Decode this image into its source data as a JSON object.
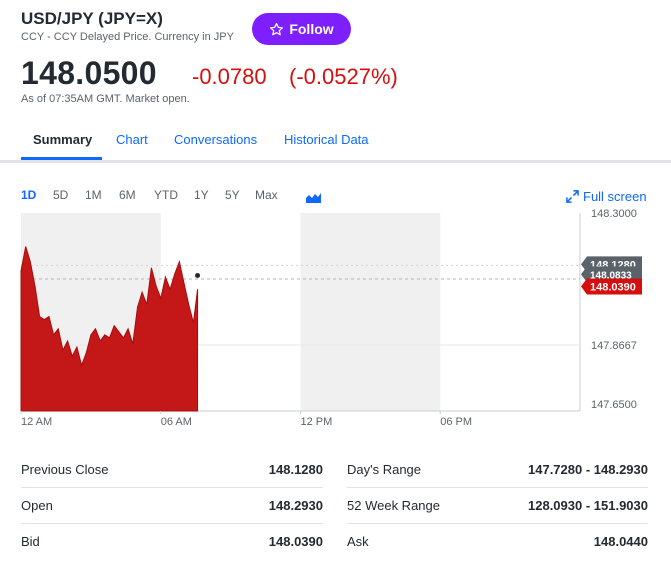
{
  "header": {
    "title": "USD/JPY (JPY=X)",
    "subtitle": "CCY - CCY Delayed Price. Currency in JPY",
    "follow_label": "Follow"
  },
  "quote": {
    "price": "148.0500",
    "change": "-0.0780",
    "change_pct": "(-0.0527%)",
    "as_of": "As of 07:35AM GMT. Market open."
  },
  "tabs": [
    {
      "label": "Summary"
    },
    {
      "label": "Chart"
    },
    {
      "label": "Conversations"
    },
    {
      "label": "Historical Data"
    }
  ],
  "ranges": [
    {
      "label": "1D"
    },
    {
      "label": "5D"
    },
    {
      "label": "1M"
    },
    {
      "label": "6M"
    },
    {
      "label": "YTD"
    },
    {
      "label": "1Y"
    },
    {
      "label": "5Y"
    },
    {
      "label": "Max"
    }
  ],
  "fullscreen_label": "Full screen",
  "colors": {
    "accent": "#0f69ff",
    "negative": "#d50e0e",
    "follow": "#7e1fff"
  },
  "chart_data": {
    "type": "area",
    "x_tick_labels": [
      "12 AM",
      "06 AM",
      "12 PM",
      "06 PM"
    ],
    "y_tick_labels": [
      "148.3000",
      "147.8667",
      "147.6500"
    ],
    "ylim": [
      147.65,
      148.3
    ],
    "xlim_hours": [
      0,
      24
    ],
    "reference_lines": [
      148.0833
    ],
    "price_flags": [
      {
        "label": "148.1280",
        "value": 148.128,
        "color": "#5b636a"
      },
      {
        "label": "148.0833",
        "value": 148.0833,
        "color": "#5b636a"
      },
      {
        "label": "148.0390",
        "value": 148.039,
        "color": "#d50e0e"
      }
    ],
    "series": [
      {
        "x": [
          0,
          0.2,
          0.4,
          0.6,
          0.8,
          1.0,
          1.2,
          1.4,
          1.6,
          1.8,
          2.0,
          2.2,
          2.4,
          2.6,
          2.8,
          3.0,
          3.2,
          3.4,
          3.6,
          3.8,
          4.0,
          4.2,
          4.4,
          4.6,
          4.8,
          5.0,
          5.2,
          5.4,
          5.6,
          5.8,
          6.0,
          6.2,
          6.4,
          6.6,
          6.8,
          7.0,
          7.2,
          7.4,
          7.58
        ],
        "values": [
          148.11,
          148.19,
          148.14,
          148.06,
          147.96,
          147.95,
          147.96,
          147.9,
          147.92,
          147.85,
          147.88,
          147.83,
          147.86,
          147.8,
          147.84,
          147.9,
          147.92,
          147.88,
          147.9,
          147.89,
          147.93,
          147.91,
          147.89,
          147.92,
          147.87,
          147.99,
          148.04,
          148.0,
          148.12,
          148.06,
          148.02,
          148.09,
          148.05,
          148.1,
          148.14,
          148.07,
          148.0,
          147.94,
          148.05
        ]
      }
    ],
    "last_value": 148.039
  },
  "stats_left": [
    {
      "label": "Previous Close",
      "value": "148.1280"
    },
    {
      "label": "Open",
      "value": "148.2930"
    },
    {
      "label": "Bid",
      "value": "148.0390"
    }
  ],
  "stats_right": [
    {
      "label": "Day's Range",
      "value": "147.7280 - 148.2930"
    },
    {
      "label": "52 Week Range",
      "value": "128.0930 - 151.9030"
    },
    {
      "label": "Ask",
      "value": "148.0440"
    }
  ]
}
